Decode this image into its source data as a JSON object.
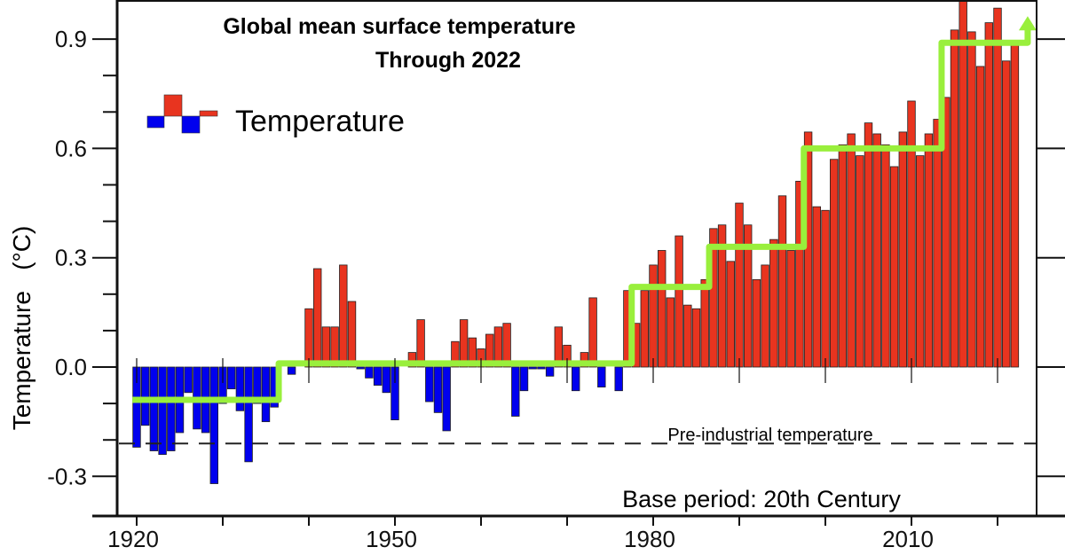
{
  "chart_data": {
    "type": "bar",
    "title": "Global mean surface temperature",
    "subtitle": "Through 2022",
    "xlabel": "",
    "ylabel": "Temperature   (°C)",
    "legend": {
      "label": "Temperature",
      "placement": "top-left"
    },
    "xlim": [
      1918,
      2026
    ],
    "ylim": [
      -0.4,
      1.0
    ],
    "x_ticks": [
      1920,
      1950,
      1980,
      2010
    ],
    "y_ticks": [
      -0.3,
      0.0,
      0.3,
      0.6,
      0.9
    ],
    "y_tick_labels": [
      "-0.3",
      "0.0",
      "0.3",
      "0.6",
      "0.9"
    ],
    "grid": false,
    "colors": {
      "positive": "#e8341f",
      "negative": "#0000ee",
      "step_line": "#99ef3c"
    },
    "years_start": 1920,
    "values": [
      -0.22,
      -0.16,
      -0.23,
      -0.24,
      -0.23,
      -0.18,
      -0.07,
      -0.17,
      -0.18,
      -0.32,
      -0.1,
      -0.06,
      -0.12,
      -0.26,
      -0.1,
      -0.15,
      -0.11,
      0.0,
      -0.02,
      0.0,
      0.16,
      0.27,
      0.11,
      0.11,
      0.28,
      0.18,
      -0.005,
      -0.03,
      -0.05,
      -0.07,
      -0.145,
      0.0,
      0.04,
      0.13,
      -0.095,
      -0.125,
      -0.175,
      0.07,
      0.13,
      0.08,
      0.05,
      0.09,
      0.11,
      0.12,
      -0.135,
      -0.065,
      -0.005,
      -0.005,
      -0.025,
      0.11,
      0.06,
      -0.065,
      0.04,
      0.19,
      -0.055,
      0.0,
      -0.065,
      0.21,
      0.12,
      0.21,
      0.28,
      0.32,
      0.19,
      0.36,
      0.17,
      0.16,
      0.24,
      0.38,
      0.39,
      0.29,
      0.45,
      0.39,
      0.24,
      0.28,
      0.35,
      0.47,
      0.32,
      0.51,
      0.645,
      0.44,
      0.43,
      0.57,
      0.61,
      0.64,
      0.58,
      0.67,
      0.64,
      0.61,
      0.55,
      0.645,
      0.73,
      0.58,
      0.64,
      0.68,
      0.74,
      0.925,
      1.01,
      0.92,
      0.825,
      0.945,
      0.985,
      0.84,
      0.885
    ],
    "step_line": [
      {
        "from": 1919.5,
        "to": 1936.5,
        "value": -0.09
      },
      {
        "from": 1936.5,
        "to": 1977.5,
        "value": 0.01
      },
      {
        "from": 1977.5,
        "to": 1986.5,
        "value": 0.22
      },
      {
        "from": 1986.5,
        "to": 1997.5,
        "value": 0.33
      },
      {
        "from": 1997.5,
        "to": 2013.5,
        "value": 0.6
      },
      {
        "from": 2013.5,
        "to": 2023.5,
        "value": 0.89
      }
    ],
    "reference_line": {
      "value": -0.21,
      "label": "Pre-industrial temperature"
    },
    "annotation": "Base period: 20th Century"
  }
}
